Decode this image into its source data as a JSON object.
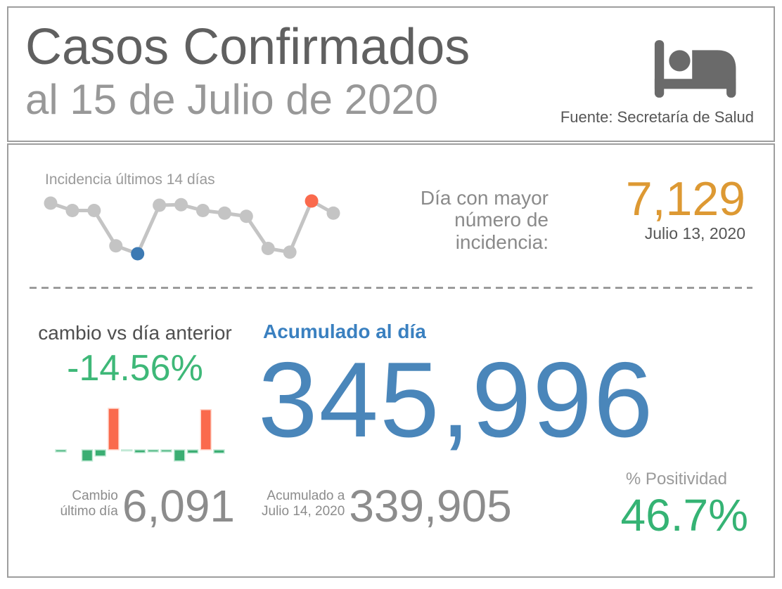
{
  "header": {
    "title": "Casos Confirmados",
    "subtitle": "al 15 de Julio de 2020",
    "source": "Fuente: Secretaría de Salud",
    "icon": "bed-patient-icon"
  },
  "incidence": {
    "label": "Incidencia últimos 14 días",
    "peak_label_lines": [
      "Día con mayor",
      "número de",
      "incidencia:"
    ],
    "peak_value": "7,129",
    "peak_date": "Julio 13, 2020"
  },
  "change": {
    "label": "cambio vs día anterior",
    "percent": "-14.56%",
    "last_day_label_lines": [
      "Cambio",
      "último día"
    ],
    "last_day_value": "6,091"
  },
  "accumulated": {
    "label": "Acumulado al día",
    "value": "345,996",
    "previous_label_lines": [
      "Acumulado a",
      "Julio 14, 2020"
    ],
    "previous_value": "339,905"
  },
  "positivity": {
    "label": "% Positividad",
    "value": "46.7%"
  },
  "colors": {
    "accent_orange": "#dd9933",
    "accent_blue": "#4a86ba",
    "accent_blue_label": "#3a80c0",
    "accent_green": "#35b374",
    "accent_red": "#fa6a4d",
    "min_point_blue": "#3d7ab3",
    "sparkline_gray": "#c4c4c4",
    "text_gray": "#8c8c8c",
    "border_gray": "#9e9e9e"
  },
  "chart_data": [
    {
      "type": "line",
      "title": "Incidencia últimos 14 días",
      "x": [
        1,
        2,
        3,
        4,
        5,
        6,
        7,
        8,
        9,
        10,
        11,
        12,
        13,
        14
      ],
      "xlabel": "",
      "ylabel": "",
      "units": "normalized 0-1 (no axis shown; only peak value labeled)",
      "ylim": [
        0,
        1
      ],
      "grid": false,
      "legend": "none",
      "values": [
        0.96,
        0.82,
        0.82,
        0.15,
        0.0,
        0.92,
        0.93,
        0.82,
        0.77,
        0.71,
        0.1,
        0.03,
        1.0,
        0.77
      ],
      "line_color": "#c4c4c4",
      "point_color": "#c4c4c4",
      "max_point": {
        "index": 12,
        "color": "#fa6a4d",
        "value": 7129,
        "value_label": "7,129",
        "date": "Julio 13, 2020"
      },
      "min_point": {
        "index": 4,
        "color": "#3d7ab3"
      }
    },
    {
      "type": "bar",
      "title": "cambio vs día anterior",
      "xlabel": "",
      "ylabel": "",
      "units": "relative day-over-day change (no axis shown; red = increase)",
      "grid": false,
      "legend": "none",
      "values": [
        -0.05,
        0.0,
        -0.27,
        -0.15,
        1.0,
        -0.025,
        -0.07,
        -0.05,
        -0.05,
        -0.27,
        -0.08,
        0.97,
        -0.08
      ],
      "positive_color": "#fa6a4d",
      "negative_color": "#3bae73",
      "positive_stroke": "#ffd9cf",
      "negative_stroke": "#c2e9d6"
    }
  ]
}
